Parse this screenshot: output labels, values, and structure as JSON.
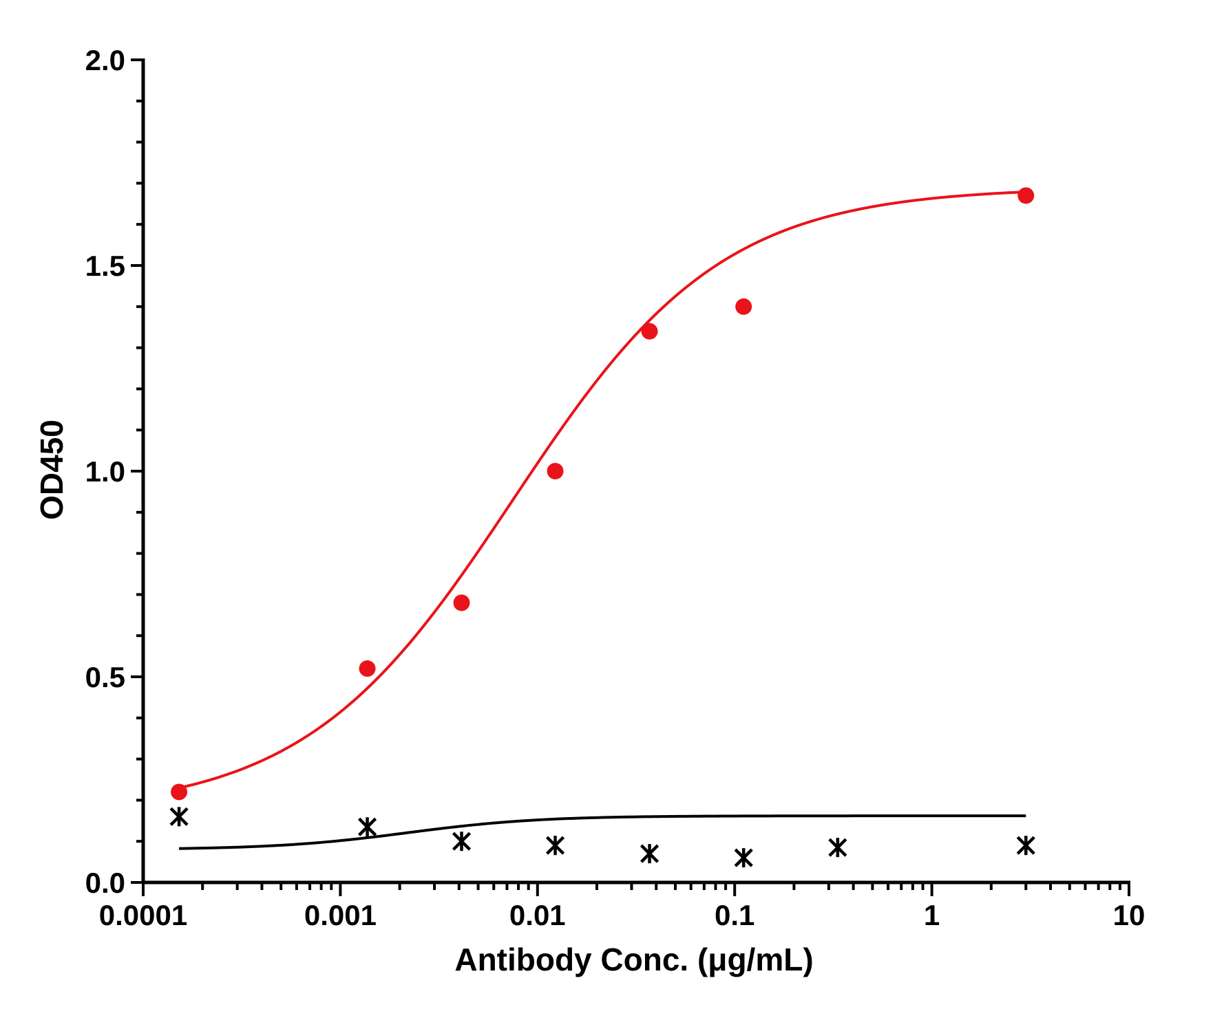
{
  "chart_data": {
    "type": "scatter",
    "xlabel": "Antibody Conc. (μg/mL)",
    "ylabel": "OD450",
    "xscale": "log",
    "xlim": [
      0.0001,
      10
    ],
    "ylim": [
      0,
      2.0
    ],
    "x_ticks": [
      "0.0001",
      "0.001",
      "0.01",
      "0.1",
      "1",
      "10"
    ],
    "y_ticks": [
      "0.0",
      "0.5",
      "1.0",
      "1.5",
      "2.0"
    ],
    "grid": false,
    "legend": "none",
    "series": [
      {
        "color": "#e8141a",
        "marker": "circle",
        "x": [
          0.000152,
          0.00137,
          0.00412,
          0.0123,
          0.037,
          0.111,
          3.0
        ],
        "y": [
          0.22,
          0.52,
          0.68,
          1.0,
          1.34,
          1.4,
          1.67
        ],
        "fit": {
          "bottom": 0.17,
          "top": 1.69,
          "ec50": 0.0075,
          "hill": 0.82
        }
      },
      {
        "color": "#000000",
        "marker": "star",
        "x": [
          0.000152,
          0.00137,
          0.00412,
          0.0123,
          0.037,
          0.111,
          0.333,
          3.0
        ],
        "y": [
          0.16,
          0.135,
          0.1,
          0.09,
          0.07,
          0.06,
          0.085,
          0.09
        ],
        "fit": {
          "bottom": 0.08,
          "top": 0.162,
          "ec50": 0.0022,
          "hill": 1.3
        }
      }
    ]
  }
}
